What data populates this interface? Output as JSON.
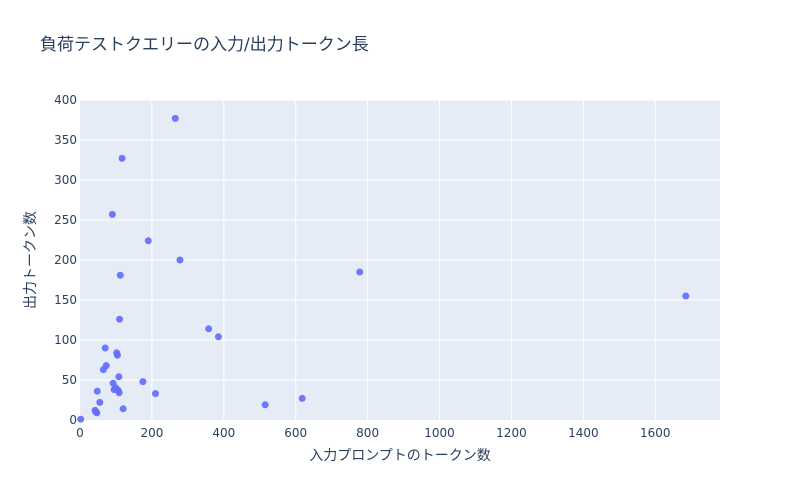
{
  "chart_data": {
    "type": "scatter",
    "title": "負荷テストクエリーの入力/出力トークン長",
    "xlabel": "入力プロンプトのトークン数",
    "ylabel": "出力トークン数",
    "xlim": [
      0,
      1780
    ],
    "ylim": [
      0,
      400
    ],
    "xticks": [
      0,
      200,
      400,
      600,
      800,
      1000,
      1200,
      1400,
      1600
    ],
    "yticks": [
      0,
      50,
      100,
      150,
      200,
      250,
      300,
      350,
      400
    ],
    "grid": true,
    "colors": {
      "marker": "#636efa",
      "plot_bg": "#e5ecf6",
      "grid": "#ffffff",
      "text": "#2a3f5f"
    },
    "series": [
      {
        "points": [
          [
            2,
            1
          ],
          [
            42,
            12
          ],
          [
            44,
            10
          ],
          [
            47,
            9
          ],
          [
            48,
            36
          ],
          [
            55,
            22
          ],
          [
            65,
            63
          ],
          [
            70,
            90
          ],
          [
            73,
            68
          ],
          [
            90,
            257
          ],
          [
            92,
            46
          ],
          [
            95,
            38
          ],
          [
            100,
            40
          ],
          [
            102,
            84
          ],
          [
            104,
            81
          ],
          [
            106,
            37
          ],
          [
            108,
            54
          ],
          [
            109,
            34
          ],
          [
            110,
            126
          ],
          [
            112,
            181
          ],
          [
            117,
            327
          ],
          [
            120,
            14
          ],
          [
            175,
            48
          ],
          [
            190,
            224
          ],
          [
            210,
            33
          ],
          [
            265,
            377
          ],
          [
            278,
            200
          ],
          [
            358,
            114
          ],
          [
            385,
            104
          ],
          [
            515,
            19
          ],
          [
            618,
            27
          ],
          [
            778,
            185
          ],
          [
            1685,
            155
          ]
        ]
      }
    ]
  }
}
